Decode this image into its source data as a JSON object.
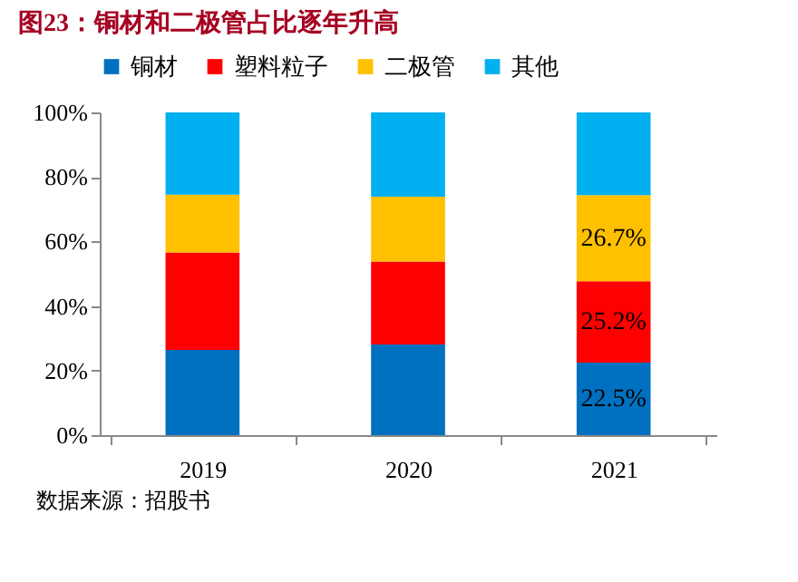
{
  "chart_data": {
    "type": "bar",
    "title": "图23：铜材和二极管占比逐年升高",
    "stacked": true,
    "legend": "top",
    "categories": [
      "2019",
      "2020",
      "2021"
    ],
    "series": [
      {
        "name": "铜材",
        "color": "#0070c0",
        "values": [
          26.4,
          28.1,
          22.5
        ],
        "value_labels": [
          null,
          null,
          "22.5%"
        ]
      },
      {
        "name": "塑料粒子",
        "color": "#ff0000",
        "values": [
          30.2,
          25.7,
          25.2
        ],
        "value_labels": [
          null,
          null,
          "25.2%"
        ]
      },
      {
        "name": "二极管",
        "color": "#ffc000",
        "values": [
          17.9,
          20.1,
          26.7
        ],
        "value_labels": [
          null,
          null,
          "26.7%"
        ]
      },
      {
        "name": "其他",
        "color": "#00b0f0",
        "values": [
          25.5,
          26.1,
          25.6
        ]
      }
    ],
    "ylim": [
      0,
      100
    ],
    "yticks": [
      {
        "value": 0,
        "label": "0%"
      },
      {
        "value": 20,
        "label": "20%"
      },
      {
        "value": 40,
        "label": "40%"
      },
      {
        "value": 60,
        "label": "60%"
      },
      {
        "value": 80,
        "label": "80%"
      },
      {
        "value": 100,
        "label": "100%"
      }
    ],
    "grid": false,
    "annotations": [
      "数据来源：招股书"
    ]
  }
}
